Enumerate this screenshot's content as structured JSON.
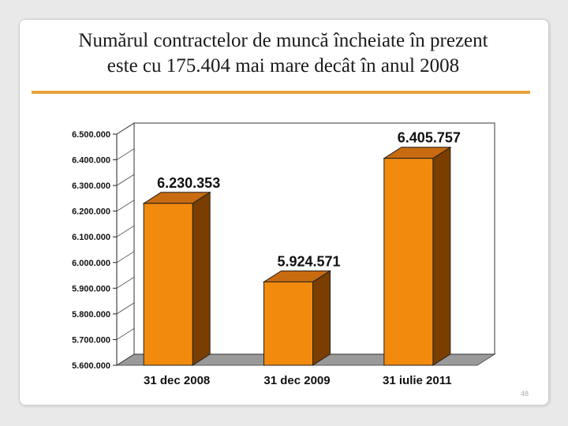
{
  "slide": {
    "title_line1": "Numărul contractelor de muncă încheiate în prezent",
    "title_line2": "este cu 175.404 mai mare decât în anul 2008",
    "page_number": "48"
  },
  "colors": {
    "accent_rule": "#e8a33a",
    "bar_front": "#f28a0e",
    "bar_side": "#7a3e00",
    "bar_top": "#c86a10"
  },
  "chart_data": {
    "type": "bar",
    "categories": [
      "31 dec 2008",
      "31 dec 2009",
      "31 iulie 2011"
    ],
    "values": [
      6230353,
      5924571,
      6405757
    ],
    "value_labels": [
      "6.230.353",
      "5.924.571",
      "6.405.757"
    ],
    "ylim": [
      5600000,
      6500000
    ],
    "yticks": [
      5600000,
      5700000,
      5800000,
      5900000,
      6000000,
      6100000,
      6200000,
      6300000,
      6400000,
      6500000
    ],
    "ytick_labels": [
      "5.600.000",
      "5.700.000",
      "5.800.000",
      "5.900.000",
      "6.000.000",
      "6.100.000",
      "6.200.000",
      "6.300.000",
      "6.400.000",
      "6.500.000"
    ],
    "grid": false,
    "legend": "none",
    "style": "3d"
  }
}
